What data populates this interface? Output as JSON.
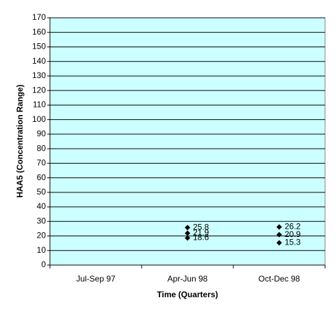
{
  "chart_data": {
    "type": "scatter",
    "xlabel": "Time (Quarters)",
    "ylabel": "HAA5 (Concentration Range)",
    "categories": [
      "Jul-Sep 97",
      "Apr-Jun 98",
      "Oct-Dec 98"
    ],
    "series": [
      {
        "color": "#000000",
        "values": [
          null,
          25.8,
          26.2
        ]
      },
      {
        "color": "#000000",
        "values": [
          null,
          21.9,
          20.9
        ]
      },
      {
        "color": "#000000",
        "values": [
          null,
          18.6,
          15.3
        ]
      }
    ],
    "ylim": [
      0,
      170
    ],
    "yticks": [
      0,
      10,
      20,
      30,
      40,
      50,
      60,
      70,
      80,
      90,
      100,
      110,
      120,
      130,
      140,
      150,
      160,
      170
    ],
    "grid": true,
    "plot_background": "#ccffff"
  }
}
